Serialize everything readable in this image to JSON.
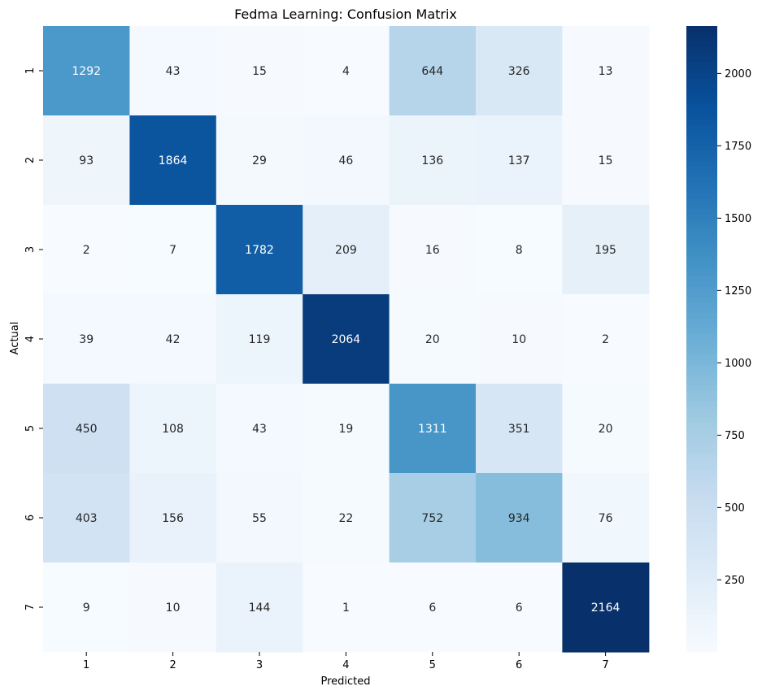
{
  "chart_data": {
    "type": "heatmap",
    "title": "Fedma Learning: Confusion Matrix",
    "xlabel": "Predicted",
    "ylabel": "Actual",
    "x_categories": [
      "1",
      "2",
      "3",
      "4",
      "5",
      "6",
      "7"
    ],
    "y_categories": [
      "1",
      "2",
      "3",
      "4",
      "5",
      "6",
      "7"
    ],
    "values": [
      [
        1292,
        43,
        15,
        4,
        644,
        326,
        13
      ],
      [
        93,
        1864,
        29,
        46,
        136,
        137,
        15
      ],
      [
        2,
        7,
        1782,
        209,
        16,
        8,
        195
      ],
      [
        39,
        42,
        119,
        2064,
        20,
        10,
        2
      ],
      [
        450,
        108,
        43,
        19,
        1311,
        351,
        20
      ],
      [
        403,
        156,
        55,
        22,
        752,
        934,
        76
      ],
      [
        9,
        10,
        144,
        1,
        6,
        6,
        2164
      ]
    ],
    "colorbar": {
      "colormap": "Blues",
      "range": [
        1,
        2164
      ],
      "ticks": [
        2000,
        1750,
        1500,
        1250,
        1000,
        750,
        500,
        250
      ]
    },
    "colors": {
      "low": "#f7fbff",
      "high": "#08306b",
      "text_dark": "#262626",
      "text_light": "#ffffff"
    }
  }
}
